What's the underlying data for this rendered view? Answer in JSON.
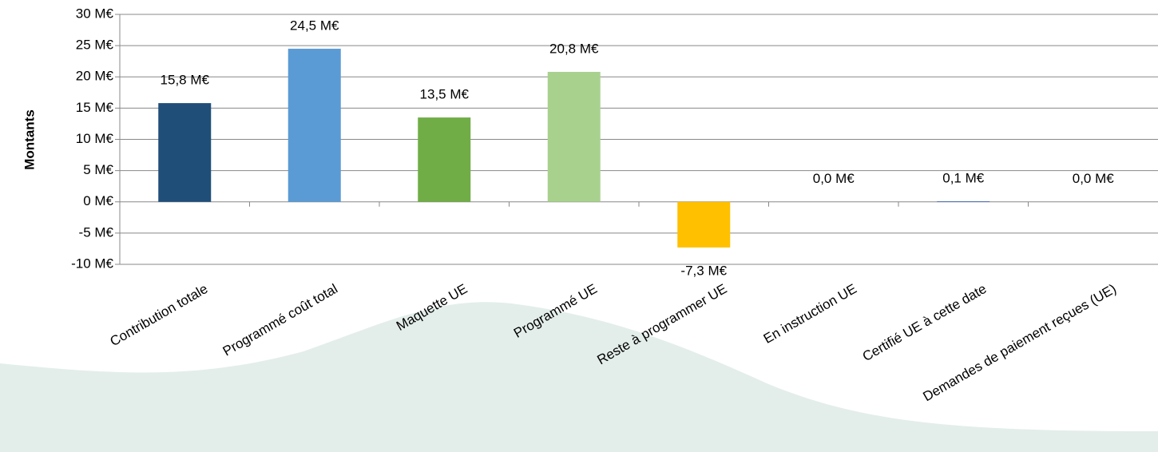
{
  "chart_data": {
    "type": "bar",
    "y_label": "Montants",
    "categories": [
      "Contribution totale",
      "Programmé coût total",
      "Maquette UE",
      "Programmé UE",
      "Reste à programmer UE",
      "En instruction UE",
      "Certifié UE à cette date",
      "Demandes de paiement reçues (UE)"
    ],
    "values": [
      15.8,
      24.5,
      13.5,
      20.8,
      -7.3,
      0.0,
      0.1,
      0.0
    ],
    "value_labels": [
      "15,8 M€",
      "24,5 M€",
      "13,5 M€",
      "20,8 M€",
      "-7,3 M€",
      "0,0 M€",
      "0,1 M€",
      "0,0 M€"
    ],
    "colors": [
      "#1f4e79",
      "#5b9bd5",
      "#70ad47",
      "#a9d18e",
      "#ffc000",
      "#4472c4",
      "#4472c4",
      "#4472c4"
    ],
    "ylim": [
      -10,
      30
    ],
    "yticks": [
      {
        "value": -10,
        "label": "-10 M€"
      },
      {
        "value": -5,
        "label": "-5 M€"
      },
      {
        "value": 0,
        "label": "0 M€"
      },
      {
        "value": 5,
        "label": "5 M€"
      },
      {
        "value": 10,
        "label": "10 M€"
      },
      {
        "value": 15,
        "label": "15 M€"
      },
      {
        "value": 20,
        "label": "20 M€"
      },
      {
        "value": 25,
        "label": "25 M€"
      },
      {
        "value": 30,
        "label": "30 M€"
      }
    ],
    "grid": true
  }
}
